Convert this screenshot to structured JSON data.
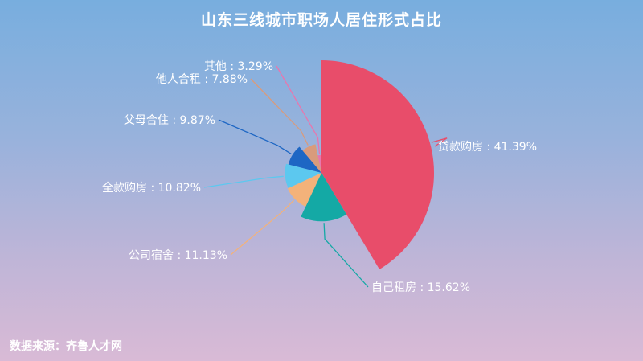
{
  "header": {
    "title": "山东三线城市职场人居住形式占比"
  },
  "footer": {
    "source": "数据来源：齐鲁人才网"
  },
  "chart_data": {
    "type": "pie",
    "variant": "nightingale-rose",
    "title": "山东三线城市职场人居住形式占比",
    "unit": "%",
    "slices": [
      {
        "label": "贷款购房",
        "value": 41.39,
        "text": "贷款购房 : 41.39%",
        "color": "#e84d6a"
      },
      {
        "label": "自己租房",
        "value": 15.62,
        "text": "自己租房 : 15.62%",
        "color": "#14a9a5"
      },
      {
        "label": "公司宿舍",
        "value": 11.13,
        "text": "公司宿舍 : 11.13%",
        "color": "#f3b27a"
      },
      {
        "label": "全款购房",
        "value": 10.82,
        "text": "全款购房 : 10.82%",
        "color": "#5cc8ef"
      },
      {
        "label": "父母合住",
        "value": 9.87,
        "text": "父母合住 : 9.87%",
        "color": "#1e67c4"
      },
      {
        "label": "他人合租",
        "value": 7.88,
        "text": "他人合租 : 7.88%",
        "color": "#d99b7c"
      },
      {
        "label": "其他",
        "value": 3.29,
        "text": "其他 : 3.29%",
        "color": "#e876ae"
      }
    ],
    "legend": "none"
  }
}
